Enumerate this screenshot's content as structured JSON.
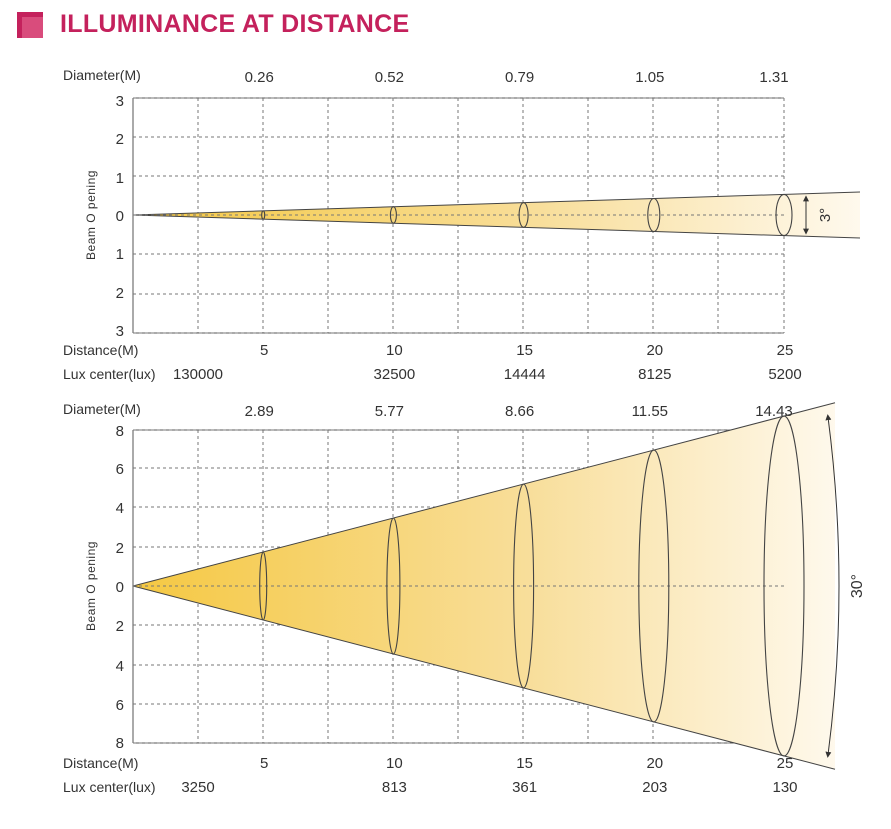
{
  "title": "ILLUMINANCE AT DISTANCE",
  "colors": {
    "accent": "#c4215c",
    "beam_start": "#f5c842",
    "beam_end": "#fffaf0"
  },
  "chart_data": [
    {
      "type": "beam-diagram",
      "beam_angle_label": "3°",
      "ylabel": "Beam O pening",
      "diameter_label": "Diameter(M)",
      "distance_label": "Distance(M)",
      "lux_label": "Lux center(lux)",
      "distances": [
        5,
        10,
        15,
        20,
        25
      ],
      "diameters": [
        0.26,
        0.52,
        0.79,
        1.05,
        1.31
      ],
      "diameter_labels": [
        "0.26",
        "0.52",
        "0.79",
        "1.05",
        "1.31"
      ],
      "lux": [
        "130000",
        "32500",
        "14444",
        "8125",
        "5200"
      ],
      "y_ticks": [
        "3",
        "2",
        "1",
        "0",
        "1",
        "2",
        "3"
      ],
      "ylim": [
        -3,
        3
      ],
      "xlim": [
        0,
        25
      ],
      "grid": true
    },
    {
      "type": "beam-diagram",
      "beam_angle_label": "30°",
      "ylabel": "Beam O pening",
      "diameter_label": "Diameter(M)",
      "distance_label": "Distance(M)",
      "lux_label": "Lux center(lux)",
      "distances": [
        5,
        10,
        15,
        20,
        25
      ],
      "diameters": [
        2.89,
        5.77,
        8.66,
        11.55,
        14.43
      ],
      "diameter_labels": [
        "2.89",
        "5.77",
        "8.66",
        "11.55",
        "14.43"
      ],
      "lux": [
        "3250",
        "813",
        "361",
        "203",
        "130"
      ],
      "y_ticks": [
        "8",
        "6",
        "4",
        "2",
        "0",
        "2",
        "4",
        "6",
        "8"
      ],
      "ylim": [
        -8,
        8
      ],
      "xlim": [
        0,
        25
      ],
      "grid": true
    }
  ]
}
